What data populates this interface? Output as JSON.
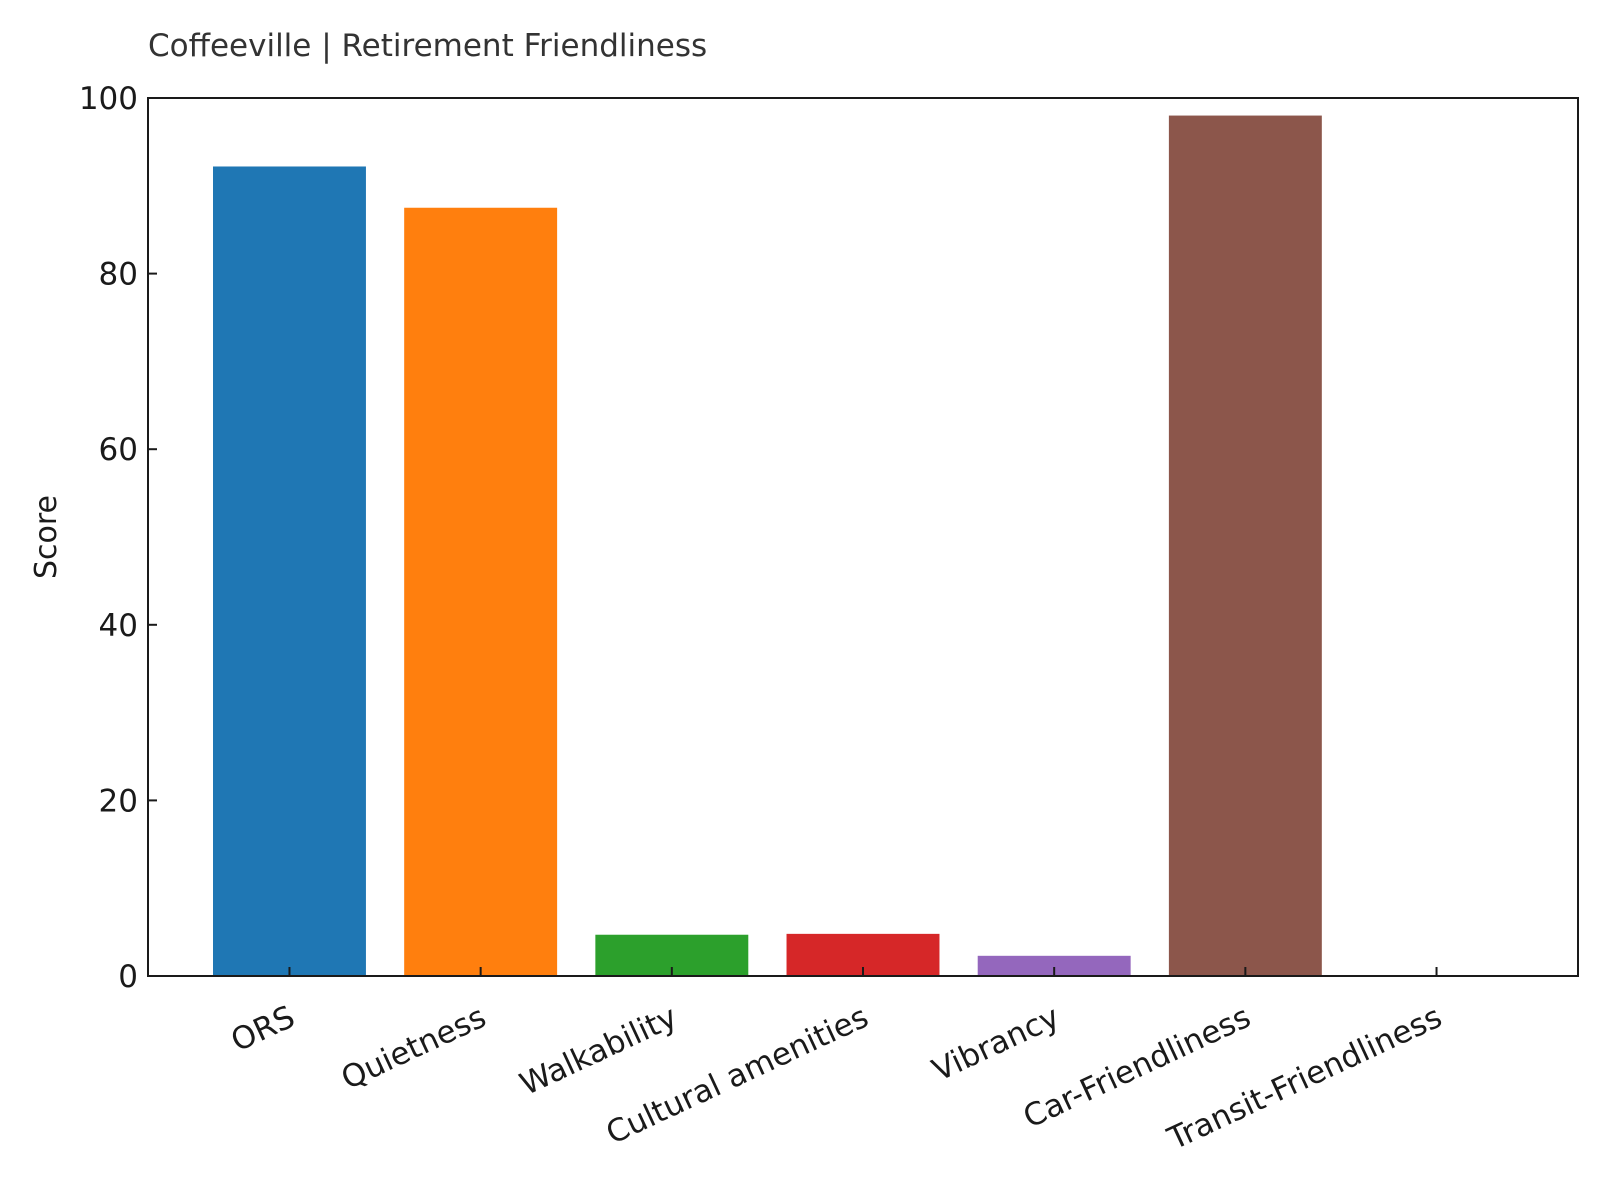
{
  "chart_data": {
    "type": "bar",
    "title": "Coffeeville | Retirement Friendliness",
    "xlabel": "",
    "ylabel": "Score",
    "ylim": [
      0,
      100
    ],
    "yticks": [
      "0",
      "20",
      "40",
      "60",
      "80",
      "100"
    ],
    "grid": false,
    "categories": [
      "ORS",
      "Quietness",
      "Walkability",
      "Cultural amenities",
      "Vibrancy",
      "Car-Friendliness",
      "Transit-Friendliness"
    ],
    "values": [
      92.2,
      87.5,
      4.7,
      4.8,
      2.3,
      98.0,
      0
    ],
    "colors": [
      "#1f77b4",
      "#ff7f0e",
      "#2ca02c",
      "#d62728",
      "#9467bd",
      "#8c564b",
      "#e377c2"
    ]
  }
}
